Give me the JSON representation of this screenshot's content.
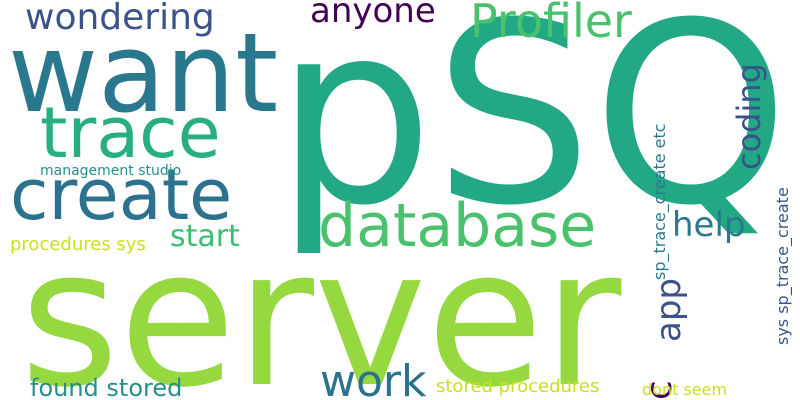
{
  "words": [
    {
      "id": "psql",
      "text": "pSQL",
      "color": "#22a884"
    },
    {
      "id": "server",
      "text": "server",
      "color": "#95d840"
    },
    {
      "id": "want",
      "text": "want",
      "color": "#2a788e"
    },
    {
      "id": "trace",
      "text": "trace",
      "color": "#29af7f"
    },
    {
      "id": "create",
      "text": "create",
      "color": "#2c728e"
    },
    {
      "id": "wondering",
      "text": "wondering",
      "color": "#3b528b"
    },
    {
      "id": "anyone",
      "text": "anyone",
      "color": "#440154"
    },
    {
      "id": "profiler",
      "text": "Profiler",
      "color": "#4ac16d"
    },
    {
      "id": "database",
      "text": "database",
      "color": "#4ac16d"
    },
    {
      "id": "start",
      "text": "start",
      "color": "#3dbc74"
    },
    {
      "id": "help",
      "text": "help",
      "color": "#2a788e"
    },
    {
      "id": "coding",
      "text": "coding",
      "color": "#3b528b"
    },
    {
      "id": "c",
      "text": "c",
      "color": "#440154"
    },
    {
      "id": "app",
      "text": "app",
      "color": "#3b528b"
    },
    {
      "id": "work",
      "text": "work",
      "color": "#2c728e"
    },
    {
      "id": "found_stored",
      "text": "found stored",
      "color": "#21918c"
    },
    {
      "id": "procedures_sys",
      "text": "procedures sys",
      "color": "#c8e020"
    },
    {
      "id": "management_studio",
      "text": "management studio",
      "color": "#21918c"
    },
    {
      "id": "stored_procedures",
      "text": "stored procedures",
      "color": "#c8e020"
    },
    {
      "id": "dont_seem",
      "text": "dont seem",
      "color": "#c8e020"
    },
    {
      "id": "sp_trace_create_etc",
      "text": "sp_trace_create etc",
      "color": "#2a788e"
    },
    {
      "id": "sys_sp_trace_create",
      "text": "sys sp_trace_create",
      "color": "#3b528b"
    }
  ]
}
